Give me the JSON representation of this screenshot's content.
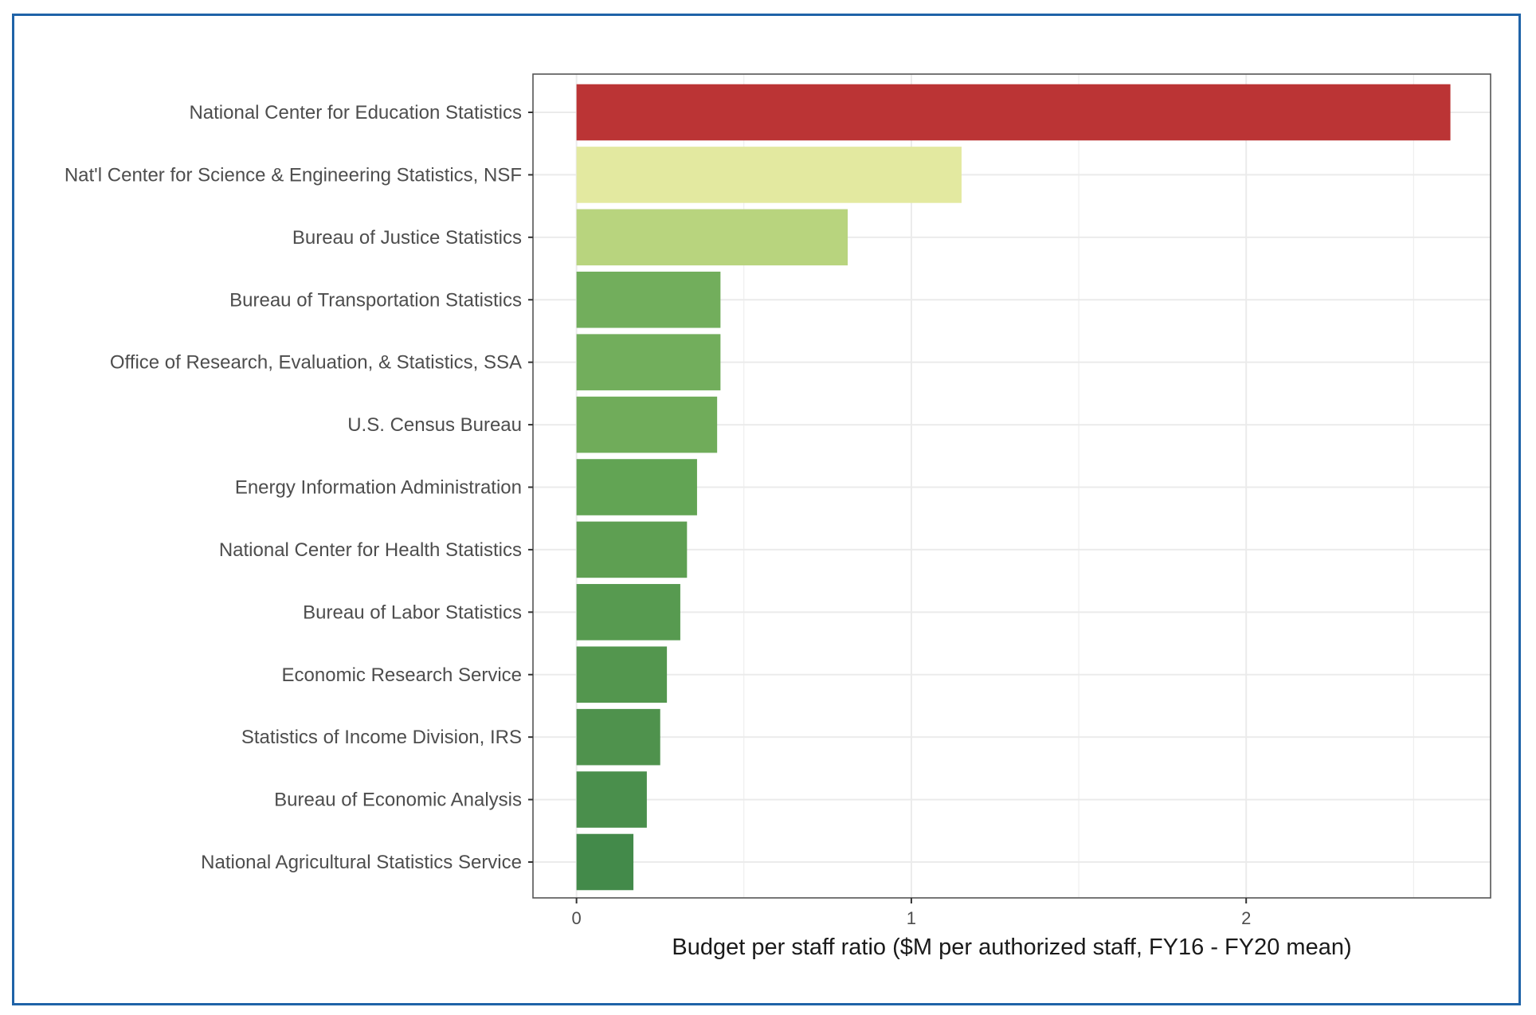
{
  "chart_data": {
    "type": "bar",
    "orientation": "horizontal",
    "title": "",
    "xlabel": "Budget per staff ratio ($M per authorized staff, FY16 - FY20 mean)",
    "ylabel": "",
    "xlim": [
      -0.13,
      2.73
    ],
    "xticks": [
      0,
      1,
      2
    ],
    "xtick_labels": [
      "0",
      "1",
      "2"
    ],
    "grid": true,
    "categories": [
      "National Center for Education Statistics",
      "Nat'l Center for Science & Engineering Statistics, NSF",
      "Bureau of Justice Statistics",
      "Bureau of Transportation Statistics",
      "Office of Research, Evaluation, & Statistics, SSA",
      "U.S. Census Bureau",
      "Energy Information Administration",
      "National Center for Health Statistics",
      "Bureau of Labor Statistics",
      "Economic Research Service",
      "Statistics of Income Division, IRS",
      "Bureau of Economic Analysis",
      "National Agricultural Statistics Service"
    ],
    "values": [
      2.61,
      1.15,
      0.81,
      0.43,
      0.43,
      0.42,
      0.36,
      0.33,
      0.31,
      0.27,
      0.25,
      0.21,
      0.17
    ],
    "colors": [
      "#bb3435",
      "#e3e9a0",
      "#b8d47e",
      "#72ae5c",
      "#72ae5c",
      "#70ac5a",
      "#62a454",
      "#5e9f52",
      "#579a50",
      "#53964e",
      "#4f924d",
      "#4a8f4c",
      "#438a4a"
    ]
  }
}
